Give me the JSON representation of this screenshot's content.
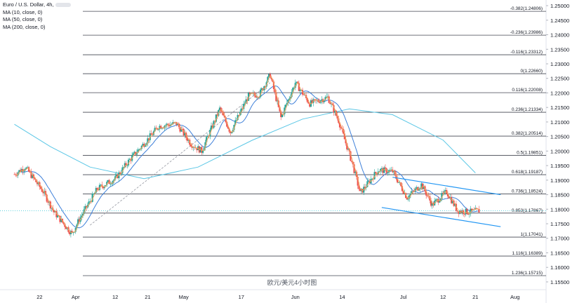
{
  "legend": {
    "symbol": "Euro / U.S. Dollar, 4h,",
    "ma1": "MA (10, close, 0)",
    "ma2": "MA (50, close, 0)",
    "ma3": "MA (200, close, 0)"
  },
  "caption": "欧元/美元4小时图",
  "colors": {
    "up": "#26a69a",
    "down": "#ef5350",
    "ma10": "#f0a35c",
    "ma50": "#3d7fd9",
    "ma200": "#5bc7e6",
    "fib": "#434651",
    "channel": "#2196f3",
    "current_price": "#2ec4d4",
    "grid_text": "#131722"
  },
  "chart_data": {
    "type": "candlestick",
    "title": "Euro / U.S. Dollar, 4h",
    "ylim": [
      1.1545,
      1.2505
    ],
    "y_ticks": [
      1.155,
      1.16,
      1.165,
      1.17,
      1.175,
      1.18,
      1.185,
      1.19,
      1.195,
      1.2,
      1.205,
      1.21,
      1.215,
      1.22,
      1.225,
      1.23,
      1.235,
      1.24,
      1.245,
      1.25
    ],
    "y_tick_labels": [
      "1.15500",
      "1.16000",
      "1.16500",
      "1.17000",
      "1.17500",
      "1.18000",
      "1.18500",
      "1.19000",
      "1.19500",
      "1.20000",
      "1.20500",
      "1.21000",
      "1.21500",
      "1.22000",
      "1.22500",
      "1.23000",
      "1.23500",
      "1.24000",
      "1.24500",
      "1.25000"
    ],
    "x_tick_labels": [
      "22",
      "Apr",
      "12",
      "21",
      "May",
      "17",
      "Jun",
      "14",
      "Jul",
      "12",
      "21",
      "Aug"
    ],
    "x_ticks": [
      "2021-03-22",
      "2021-04-01",
      "2021-04-12",
      "2021-04-21",
      "2021-05-01",
      "2021-05-17",
      "2021-06-01",
      "2021-06-14",
      "2021-07-01",
      "2021-07-12",
      "2021-07-21",
      "2021-08-01"
    ],
    "price_path": [
      {
        "date": "2021-03-15",
        "price": 1.192
      },
      {
        "date": "2021-03-18",
        "price": 1.1945
      },
      {
        "date": "2021-03-23",
        "price": 1.186
      },
      {
        "date": "2021-03-26",
        "price": 1.179
      },
      {
        "date": "2021-03-31",
        "price": 1.1715
      },
      {
        "date": "2021-04-02",
        "price": 1.1765
      },
      {
        "date": "2021-04-07",
        "price": 1.187
      },
      {
        "date": "2021-04-12",
        "price": 1.1905
      },
      {
        "date": "2021-04-16",
        "price": 1.197
      },
      {
        "date": "2021-04-21",
        "price": 1.204
      },
      {
        "date": "2021-04-24",
        "price": 1.2085
      },
      {
        "date": "2021-04-29",
        "price": 1.2095
      },
      {
        "date": "2021-05-03",
        "price": 1.2025
      },
      {
        "date": "2021-05-06",
        "price": 1.2
      },
      {
        "date": "2021-05-11",
        "price": 1.2145
      },
      {
        "date": "2021-05-14",
        "price": 1.2065
      },
      {
        "date": "2021-05-19",
        "price": 1.219
      },
      {
        "date": "2021-05-22",
        "price": 1.2195
      },
      {
        "date": "2021-05-25",
        "price": 1.2262
      },
      {
        "date": "2021-05-28",
        "price": 1.2115
      },
      {
        "date": "2021-06-01",
        "price": 1.2235
      },
      {
        "date": "2021-06-05",
        "price": 1.2163
      },
      {
        "date": "2021-06-10",
        "price": 1.2185
      },
      {
        "date": "2021-06-13",
        "price": 1.2105
      },
      {
        "date": "2021-06-17",
        "price": 1.195
      },
      {
        "date": "2021-06-19",
        "price": 1.1855
      },
      {
        "date": "2021-06-24",
        "price": 1.1935
      },
      {
        "date": "2021-06-28",
        "price": 1.193
      },
      {
        "date": "2021-07-02",
        "price": 1.184
      },
      {
        "date": "2021-07-06",
        "price": 1.1885
      },
      {
        "date": "2021-07-09",
        "price": 1.1815
      },
      {
        "date": "2021-07-13",
        "price": 1.186
      },
      {
        "date": "2021-07-16",
        "price": 1.1795
      },
      {
        "date": "2021-07-19",
        "price": 1.179
      },
      {
        "date": "2021-07-22",
        "price": 1.1795
      }
    ],
    "ma200": [
      {
        "date": "2021-03-15",
        "value": 1.2092
      },
      {
        "date": "2021-03-25",
        "value": 1.2015
      },
      {
        "date": "2021-04-05",
        "value": 1.1945
      },
      {
        "date": "2021-04-20",
        "value": 1.1905
      },
      {
        "date": "2021-05-05",
        "value": 1.1945
      },
      {
        "date": "2021-05-20",
        "value": 1.2037
      },
      {
        "date": "2021-06-03",
        "value": 1.211
      },
      {
        "date": "2021-06-16",
        "value": 1.2145
      },
      {
        "date": "2021-06-28",
        "value": 1.2125
      },
      {
        "date": "2021-07-12",
        "value": 1.2038
      },
      {
        "date": "2021-07-21",
        "value": 1.1925
      }
    ],
    "fib_levels": [
      {
        "ratio": "-0.382",
        "price": 1.24806,
        "label": "-0.382(1.24806)"
      },
      {
        "ratio": "-0.236",
        "price": 1.23986,
        "label": "-0.236(1.23986)"
      },
      {
        "ratio": "-0.116",
        "price": 1.23312,
        "label": "-0.116(1.23312)"
      },
      {
        "ratio": "0",
        "price": 1.2266,
        "label": "0(1.22660)"
      },
      {
        "ratio": "0.116",
        "price": 1.22008,
        "label": "0.116(1.22008)"
      },
      {
        "ratio": "0.236",
        "price": 1.21334,
        "label": "0.236(1.21334)"
      },
      {
        "ratio": "0.382",
        "price": 1.20514,
        "label": "0.382(1.20514)"
      },
      {
        "ratio": "0.5",
        "price": 1.19851,
        "label": "0.5(1.19851)"
      },
      {
        "ratio": "0.618",
        "price": 1.19187,
        "label": "0.618(1.19187)"
      },
      {
        "ratio": "0.736",
        "price": 1.18524,
        "label": "0.736(1.18524)"
      },
      {
        "ratio": "0.853",
        "price": 1.17867,
        "label": "0.853(1.17867)"
      },
      {
        "ratio": "1",
        "price": 1.17041,
        "label": "1(1.17041)"
      },
      {
        "ratio": "1.116",
        "price": 1.16389,
        "label": "1.116(1.16389)"
      },
      {
        "ratio": "1.236",
        "price": 1.15715,
        "label": "1.236(1.15715)"
      }
    ],
    "current_price": 1.1795,
    "channel": {
      "upper": [
        {
          "date": "2021-06-28",
          "price": 1.191
        },
        {
          "date": "2021-07-28",
          "price": 1.185
        }
      ],
      "lower": [
        {
          "date": "2021-06-25",
          "price": 1.1806
        },
        {
          "date": "2021-07-28",
          "price": 1.174
        }
      ]
    },
    "trend_line": [
      {
        "date": "2021-04-05",
        "price": 1.1745
      },
      {
        "date": "2021-05-25",
        "price": 1.2235
      }
    ]
  }
}
